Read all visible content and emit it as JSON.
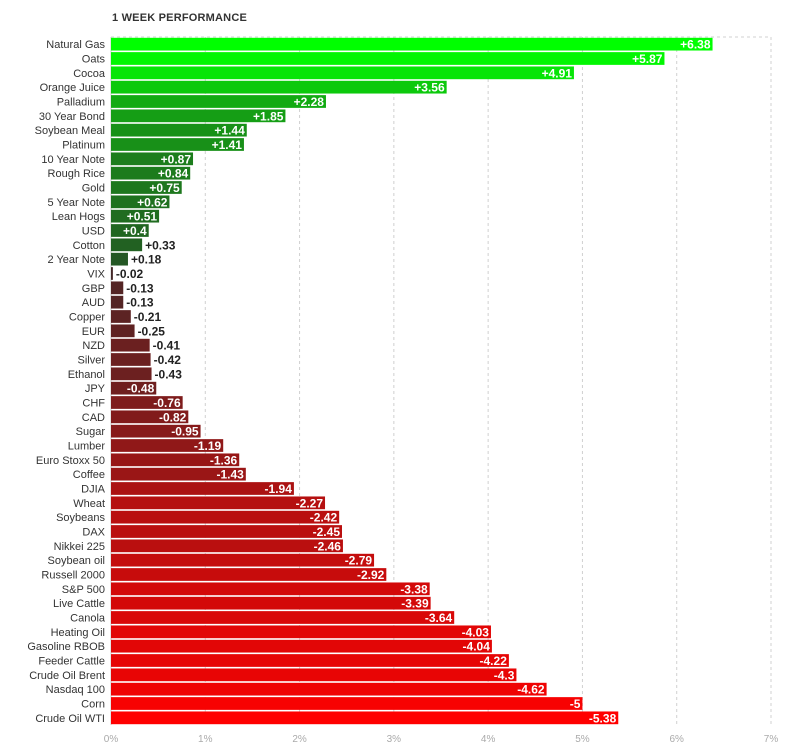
{
  "chart_data": {
    "type": "bar",
    "orientation": "horizontal",
    "title": "1 WEEK PERFORMANCE",
    "xlabel": "",
    "ylabel": "",
    "xlim": [
      0,
      7
    ],
    "x_ticks": [
      "0%",
      "1%",
      "2%",
      "3%",
      "4%",
      "5%",
      "6%",
      "7%"
    ],
    "grid": true,
    "categories": [
      "Natural Gas",
      "Oats",
      "Cocoa",
      "Orange Juice",
      "Palladium",
      "30 Year Bond",
      "Soybean Meal",
      "Platinum",
      "10 Year Note",
      "Rough Rice",
      "Gold",
      "5 Year Note",
      "Lean Hogs",
      "USD",
      "Cotton",
      "2 Year Note",
      "VIX",
      "GBP",
      "AUD",
      "Copper",
      "EUR",
      "NZD",
      "Silver",
      "Ethanol",
      "JPY",
      "CHF",
      "CAD",
      "Sugar",
      "Lumber",
      "Euro Stoxx 50",
      "Coffee",
      "DJIA",
      "Wheat",
      "Soybeans",
      "DAX",
      "Nikkei 225",
      "Soybean oil",
      "Russell 2000",
      "S&P 500",
      "Live Cattle",
      "Canola",
      "Heating Oil",
      "Gasoline RBOB",
      "Feeder Cattle",
      "Crude Oil Brent",
      "Nasdaq 100",
      "Corn",
      "Crude Oil WTI"
    ],
    "values": [
      6.38,
      5.87,
      4.91,
      3.56,
      2.28,
      1.85,
      1.44,
      1.41,
      0.87,
      0.84,
      0.75,
      0.62,
      0.51,
      0.4,
      0.33,
      0.18,
      -0.02,
      -0.13,
      -0.13,
      -0.21,
      -0.25,
      -0.41,
      -0.42,
      -0.43,
      -0.48,
      -0.76,
      -0.82,
      -0.95,
      -1.19,
      -1.36,
      -1.43,
      -1.94,
      -2.27,
      -2.42,
      -2.45,
      -2.46,
      -2.79,
      -2.92,
      -3.38,
      -3.39,
      -3.64,
      -4.03,
      -4.04,
      -4.22,
      -4.3,
      -4.62,
      -5,
      -5.38
    ],
    "value_labels": [
      "+6.38",
      "+5.87",
      "+4.91",
      "+3.56",
      "+2.28",
      "+1.85",
      "+1.44",
      "+1.41",
      "+0.87",
      "+0.84",
      "+0.75",
      "+0.62",
      "+0.51",
      "+0.4",
      "+0.33",
      "+0.18",
      "-0.02",
      "-0.13",
      "-0.13",
      "-0.21",
      "-0.25",
      "-0.41",
      "-0.42",
      "-0.43",
      "-0.48",
      "-0.76",
      "-0.82",
      "-0.95",
      "-1.19",
      "-1.36",
      "-1.43",
      "-1.94",
      "-2.27",
      "-2.42",
      "-2.45",
      "-2.46",
      "-2.79",
      "-2.92",
      "-3.38",
      "-3.39",
      "-3.64",
      "-4.03",
      "-4.04",
      "-4.22",
      "-4.3",
      "-4.62",
      "-5",
      "-5.38"
    ],
    "colors": {
      "positive_max": "#00ff00",
      "positive_min": "#2a3b2a",
      "negative_min": "#3b2a2a",
      "negative_max": "#ff0000",
      "grid": "#d0d0d0",
      "label_text": "#333333",
      "tick_text": "#aaaaaa"
    }
  }
}
